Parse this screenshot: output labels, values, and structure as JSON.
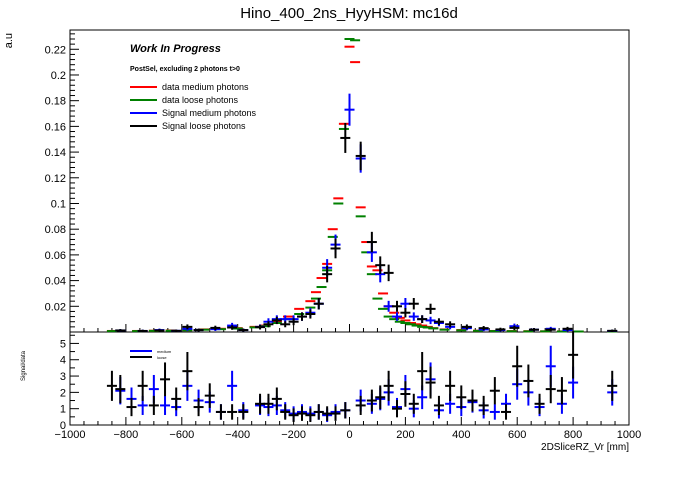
{
  "chart_data": [
    {
      "type": "scatter",
      "title": "Hino_400_2ns_HyyHSM: mc16d",
      "ylabel": "a.u",
      "xlabel": "",
      "xlim": [
        -1000,
        1000
      ],
      "ylim": [
        0,
        0.235
      ],
      "yticks": [
        0.02,
        0.04,
        0.06,
        0.08,
        0.1,
        0.12,
        0.14,
        0.16,
        0.18,
        0.2,
        0.22
      ],
      "ytick_labels": [
        "0.02",
        "0.04",
        "0.06",
        "0.08",
        "0.1",
        "0.12",
        "0.14",
        "0.16",
        "0.18",
        "0.2",
        "0.22"
      ],
      "annotations": [
        "Work In Progress",
        "PostSel, excluding 2 photons t>0"
      ],
      "legend_position": "top-left",
      "series": [
        {
          "name": "data medium photons",
          "color": "#ff0000",
          "x": [
            -850,
            -760,
            -700,
            -640,
            -580,
            -520,
            -460,
            -400,
            -340,
            -300,
            -260,
            -220,
            -180,
            -140,
            -120,
            -100,
            -80,
            -60,
            -40,
            -20,
            0,
            20,
            40,
            60,
            80,
            100,
            120,
            140,
            160,
            180,
            200,
            220,
            240,
            260,
            280,
            300,
            340,
            400,
            460,
            520,
            580,
            640,
            700,
            760,
            820,
            940
          ],
          "y": [
            0.0008,
            0.0008,
            0.001,
            0.0012,
            0.0015,
            0.002,
            0.0025,
            0.003,
            0.004,
            0.005,
            0.008,
            0.012,
            0.018,
            0.024,
            0.031,
            0.042,
            0.053,
            0.08,
            0.104,
            0.162,
            0.222,
            0.21,
            0.097,
            0.07,
            0.051,
            0.048,
            0.03,
            0.02,
            0.015,
            0.011,
            0.009,
            0.007,
            0.006,
            0.005,
            0.004,
            0.003,
            0.002,
            0.0015,
            0.001,
            0.0008,
            0.0007,
            0.0006,
            0.0005,
            0.0005,
            0.0004,
            0.0004
          ]
        },
        {
          "name": "data loose photons",
          "color": "#008000",
          "x": [
            -850,
            -760,
            -700,
            -640,
            -580,
            -520,
            -460,
            -400,
            -340,
            -300,
            -260,
            -220,
            -180,
            -140,
            -120,
            -100,
            -80,
            -60,
            -40,
            -20,
            0,
            20,
            40,
            60,
            80,
            100,
            120,
            140,
            160,
            180,
            200,
            220,
            240,
            260,
            280,
            300,
            340,
            400,
            460,
            520,
            580,
            640,
            700,
            760,
            820,
            940
          ],
          "y": [
            0.0007,
            0.0007,
            0.0009,
            0.001,
            0.0013,
            0.0018,
            0.0022,
            0.0027,
            0.0036,
            0.0045,
            0.007,
            0.01,
            0.014,
            0.019,
            0.026,
            0.035,
            0.048,
            0.074,
            0.1,
            0.158,
            0.228,
            0.227,
            0.09,
            0.062,
            0.045,
            0.026,
            0.018,
            0.012,
            0.01,
            0.008,
            0.007,
            0.006,
            0.005,
            0.004,
            0.0035,
            0.0028,
            0.0018,
            0.0013,
            0.0009,
            0.0007,
            0.0006,
            0.0005,
            0.0005,
            0.0004,
            0.0004,
            0.0004
          ]
        },
        {
          "name": "Signal medium photons",
          "color": "#0000ff",
          "x": [
            -820,
            -740,
            -680,
            -620,
            -580,
            -540,
            -480,
            -420,
            -380,
            -320,
            -290,
            -260,
            -230,
            -200,
            -170,
            -140,
            -110,
            -80,
            -50,
            0,
            40,
            80,
            110,
            140,
            170,
            200,
            230,
            260,
            290,
            320,
            360,
            420,
            480,
            540,
            590,
            660,
            720,
            780,
            940
          ],
          "y": [
            0.0012,
            0.0008,
            0.0015,
            0.0009,
            0.0025,
            0.0015,
            0.0022,
            0.005,
            0.0015,
            0.004,
            0.008,
            0.01,
            0.01,
            0.01,
            0.012,
            0.015,
            0.022,
            0.05,
            0.068,
            0.173,
            0.135,
            0.062,
            0.045,
            0.02,
            0.012,
            0.022,
            0.012,
            0.01,
            0.009,
            0.007,
            0.004,
            0.003,
            0.002,
            0.0015,
            0.0045,
            0.0018,
            0.0025,
            0.0015,
            0.0008
          ]
        },
        {
          "name": "Signal loose photons",
          "color": "#000000",
          "x": [
            -820,
            -740,
            -680,
            -620,
            -580,
            -540,
            -480,
            -420,
            -380,
            -320,
            -290,
            -260,
            -230,
            -200,
            -170,
            -140,
            -110,
            -80,
            -50,
            -15,
            40,
            80,
            110,
            140,
            170,
            200,
            230,
            260,
            290,
            320,
            360,
            420,
            480,
            540,
            590,
            660,
            720,
            780,
            940
          ],
          "y": [
            0.0012,
            0.0008,
            0.0012,
            0.0009,
            0.004,
            0.0015,
            0.0032,
            0.0035,
            0.0015,
            0.0038,
            0.006,
            0.009,
            0.006,
            0.008,
            0.012,
            0.014,
            0.022,
            0.045,
            0.065,
            0.151,
            0.137,
            0.07,
            0.052,
            0.046,
            0.02,
            0.015,
            0.022,
            0.01,
            0.018,
            0.008,
            0.006,
            0.004,
            0.003,
            0.002,
            0.0032,
            0.0018,
            0.0018,
            0.0025,
            0.0009
          ]
        }
      ]
    },
    {
      "type": "scatter",
      "title": "",
      "ylabel": "Signal/data",
      "xlabel": "2DSliceRZ_Vr [mm]",
      "xlim": [
        -1000,
        1000
      ],
      "ylim": [
        0,
        5.7
      ],
      "xticks": [
        -1000,
        -800,
        -600,
        -400,
        -200,
        0,
        200,
        400,
        600,
        800,
        1000
      ],
      "xtick_labels": [
        "−1000",
        "−800",
        "−600",
        "−400",
        "−200",
        "0",
        "200",
        "400",
        "600",
        "800",
        "1000"
      ],
      "yticks": [
        0,
        1,
        2,
        3,
        4,
        5
      ],
      "ytick_labels": [
        "0",
        "1",
        "2",
        "3",
        "4",
        "5"
      ],
      "legend_position": "top-left",
      "series": [
        {
          "name": "medium",
          "color": "#0000ff",
          "x": [
            -820,
            -780,
            -740,
            -700,
            -660,
            -620,
            -580,
            -540,
            -500,
            -460,
            -420,
            -380,
            -320,
            -290,
            -260,
            -230,
            -200,
            -170,
            -140,
            -110,
            -80,
            -50,
            -15,
            40,
            80,
            110,
            140,
            170,
            200,
            230,
            260,
            290,
            320,
            360,
            400,
            440,
            480,
            520,
            560,
            600,
            640,
            680,
            720,
            760,
            800,
            940
          ],
          "y": [
            2.1,
            1.6,
            1.2,
            2.2,
            1.2,
            1.1,
            2.4,
            1.5,
            1.4,
            0.8,
            2.4,
            0.9,
            1.2,
            1.1,
            1.2,
            0.9,
            0.7,
            0.8,
            0.7,
            0.8,
            0.6,
            0.8,
            0.9,
            1.5,
            1.3,
            1.6,
            2.0,
            1.1,
            2.2,
            1.0,
            1.7,
            2.8,
            0.9,
            1.3,
            1.1,
            1.4,
            0.9,
            0.8,
            1.3,
            2.5,
            2.0,
            1.1,
            3.6,
            1.3,
            2.6,
            2.0
          ]
        },
        {
          "name": "loose",
          "color": "#000000",
          "x": [
            -850,
            -820,
            -780,
            -740,
            -700,
            -660,
            -620,
            -580,
            -540,
            -500,
            -460,
            -420,
            -380,
            -320,
            -290,
            -260,
            -230,
            -200,
            -170,
            -140,
            -110,
            -80,
            -50,
            -15,
            40,
            80,
            110,
            140,
            170,
            200,
            230,
            260,
            290,
            320,
            360,
            400,
            440,
            480,
            520,
            560,
            600,
            640,
            680,
            720,
            760,
            800,
            940
          ],
          "y": [
            2.4,
            2.2,
            1.1,
            2.4,
            1.2,
            2.8,
            1.6,
            3.3,
            1.1,
            1.8,
            0.8,
            0.8,
            0.8,
            1.3,
            1.3,
            1.6,
            0.8,
            0.6,
            0.7,
            0.6,
            0.8,
            0.7,
            0.7,
            0.9,
            1.2,
            1.5,
            1.7,
            2.4,
            1.0,
            1.9,
            1.3,
            3.3,
            2.6,
            1.2,
            2.4,
            1.7,
            1.5,
            1.2,
            2.1,
            0.8,
            3.6,
            2.7,
            1.3,
            2.2,
            2.1,
            4.3,
            2.4
          ]
        }
      ]
    }
  ]
}
